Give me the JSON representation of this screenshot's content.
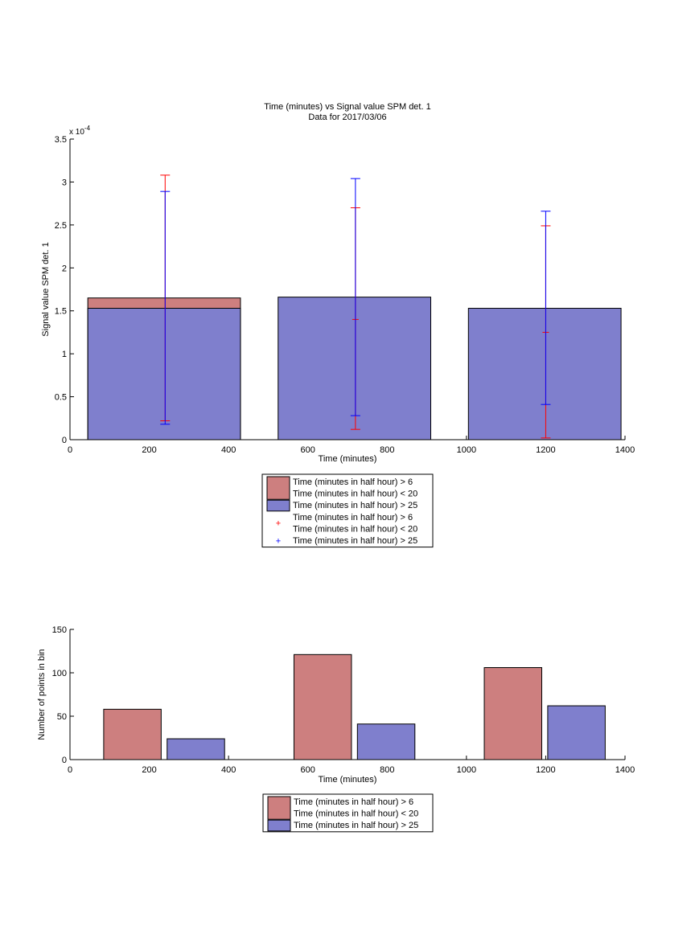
{
  "colors": {
    "red_bar": "#cd7f7f",
    "blue_bar": "#7f7fcd",
    "red_err": "#ff0000",
    "blue_err": "#0000ff",
    "axis": "#000000"
  },
  "chart_data": [
    {
      "type": "bar",
      "title": "Time (minutes) vs Signal value SPM det. 1",
      "subtitle": "Data for 2017/03/06",
      "xlabel": "Time (minutes)",
      "ylabel": "Signal value SPM det. 1",
      "exponent_label": "x 10",
      "exponent_power": "-4",
      "xlim": [
        0,
        1400
      ],
      "ylim": [
        0,
        3.5
      ],
      "y_scale": 0.0001,
      "xticks": [
        "0",
        "200",
        "400",
        "600",
        "800",
        "1000",
        "1200",
        "1400"
      ],
      "yticks": [
        "0",
        "0.5",
        "1",
        "1.5",
        "2",
        "2.5",
        "3",
        "3.5"
      ],
      "bins": [
        {
          "x_from": 45,
          "x_to": 430,
          "center": 240
        },
        {
          "x_from": 525,
          "x_to": 910,
          "center": 720
        },
        {
          "x_from": 1005,
          "x_to": 1390,
          "center": 1200
        }
      ],
      "series": [
        {
          "name": "Time (minutes in half hour) > 6\nTime (minutes in half hour) < 20",
          "color": "red",
          "values": [
            1.65,
            0,
            0
          ],
          "err_low": [
            0.22,
            0.12,
            0.02
          ],
          "err_high": [
            3.08,
            2.7,
            2.49
          ],
          "err_mid": [
            null,
            1.4,
            1.25
          ]
        },
        {
          "name": "Time (minutes in half hour) > 25",
          "color": "blue",
          "values": [
            1.53,
            1.66,
            1.53
          ],
          "err_low": [
            0.18,
            0.28,
            0.41
          ],
          "err_high": [
            2.89,
            3.04,
            2.66
          ]
        }
      ],
      "legend": {
        "placement": "below",
        "entries": [
          {
            "kind": "patch",
            "color": "red",
            "lines": [
              "Time (minutes in half hour) > 6",
              "Time (minutes in half hour) < 20"
            ]
          },
          {
            "kind": "patch",
            "color": "blue",
            "lines": [
              "Time (minutes in half hour) > 25"
            ]
          },
          {
            "kind": "marker",
            "color": "red",
            "lines": [
              "Time (minutes in half hour) > 6",
              "Time (minutes in half hour) < 20"
            ]
          },
          {
            "kind": "marker",
            "color": "blue",
            "lines": [
              "Time (minutes in half hour) > 25"
            ]
          }
        ]
      }
    },
    {
      "type": "bar",
      "xlabel": "Time (minutes)",
      "ylabel": "Number of points in bin",
      "xlim": [
        0,
        1400
      ],
      "ylim": [
        0,
        150
      ],
      "xticks": [
        "0",
        "200",
        "400",
        "600",
        "800",
        "1000",
        "1200",
        "1400"
      ],
      "yticks": [
        "0",
        "50",
        "100",
        "150"
      ],
      "series": [
        {
          "name": "Time (minutes in half hour) > 6\nTime (minutes in half hour) < 20",
          "color": "red",
          "bars": [
            {
              "x_from": 85,
              "x_to": 230,
              "value": 58
            },
            {
              "x_from": 565,
              "x_to": 710,
              "value": 121
            },
            {
              "x_from": 1045,
              "x_to": 1190,
              "value": 106
            }
          ]
        },
        {
          "name": "Time (minutes in half hour) > 25",
          "color": "blue",
          "bars": [
            {
              "x_from": 245,
              "x_to": 390,
              "value": 24
            },
            {
              "x_from": 725,
              "x_to": 870,
              "value": 41
            },
            {
              "x_from": 1205,
              "x_to": 1350,
              "value": 62
            }
          ]
        }
      ],
      "legend": {
        "placement": "below",
        "entries": [
          {
            "kind": "patch",
            "color": "red",
            "lines": [
              "Time (minutes in half hour) > 6",
              "Time (minutes in half hour) < 20"
            ]
          },
          {
            "kind": "patch",
            "color": "blue",
            "lines": [
              "Time (minutes in half hour) > 25"
            ]
          }
        ]
      }
    }
  ]
}
